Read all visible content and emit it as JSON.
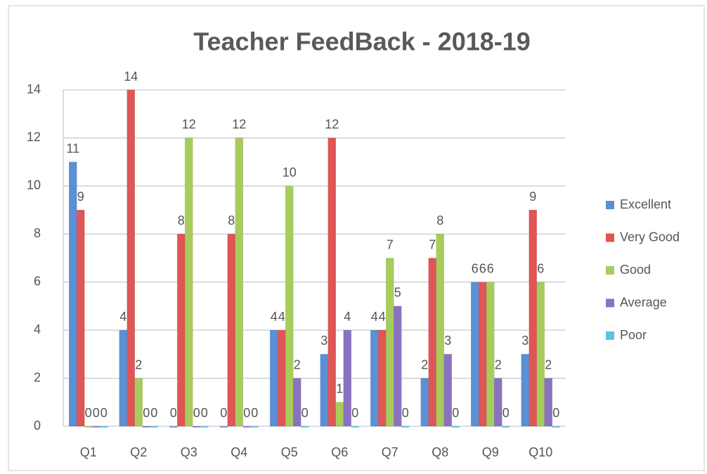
{
  "chart_data": {
    "type": "bar",
    "title": "Teacher FeedBack - 2018-19",
    "categories": [
      "Q1",
      "Q2",
      "Q3",
      "Q4",
      "Q5",
      "Q6",
      "Q7",
      "Q8",
      "Q9",
      "Q10"
    ],
    "series": [
      {
        "name": "Excellent",
        "color": "#5b8fd6",
        "values": [
          11,
          4,
          0,
          0,
          4,
          3,
          4,
          2,
          6,
          3
        ]
      },
      {
        "name": "Very Good",
        "color": "#e05555",
        "values": [
          9,
          14,
          8,
          8,
          4,
          12,
          4,
          7,
          6,
          9
        ]
      },
      {
        "name": "Good",
        "color": "#a8cc5c",
        "values": [
          0,
          2,
          12,
          12,
          10,
          1,
          7,
          8,
          6,
          6
        ]
      },
      {
        "name": "Average",
        "color": "#8a72c0",
        "values": [
          0,
          0,
          0,
          0,
          2,
          4,
          5,
          3,
          2,
          2
        ]
      },
      {
        "name": "Poor",
        "color": "#5cc4e0",
        "values": [
          0,
          0,
          0,
          0,
          0,
          0,
          0,
          0,
          0,
          0
        ]
      }
    ],
    "ylim": [
      0,
      14
    ],
    "yticks": [
      0,
      2,
      4,
      6,
      8,
      10,
      12,
      14
    ],
    "grid": true,
    "legend": "right"
  }
}
